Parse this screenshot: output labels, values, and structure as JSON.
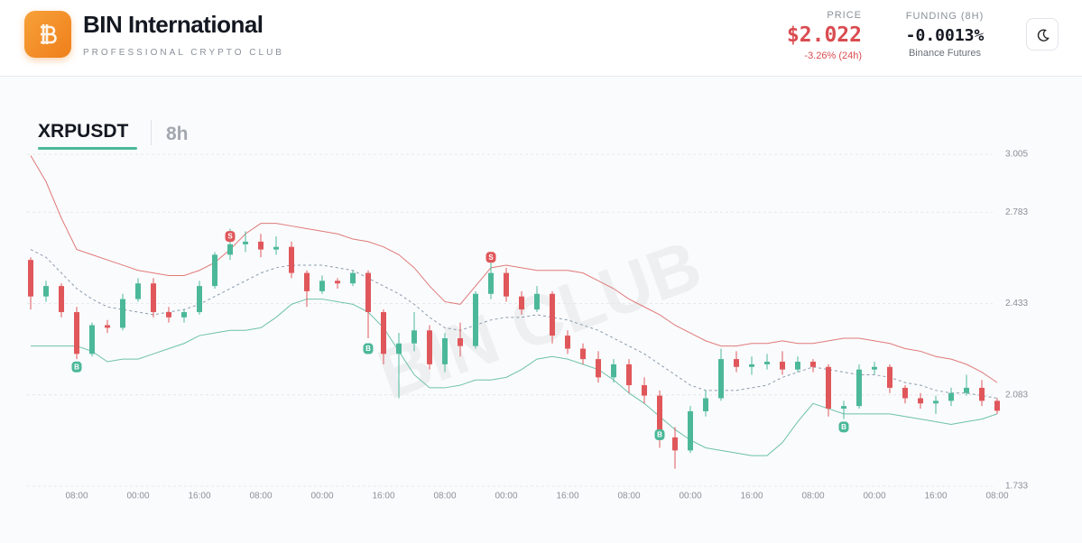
{
  "header": {
    "brand": "BIN International",
    "tagline": "PROFESSIONAL CRYPTO CLUB",
    "price": {
      "label": "PRICE",
      "value": "$2.022",
      "change": "-3.26% (24h)"
    },
    "funding": {
      "label": "FUNDING (8H)",
      "value": "-0.0013%",
      "source": "Binance Futures"
    }
  },
  "tabs": {
    "symbol": "XRPUSDT",
    "interval": "8h"
  },
  "watermark": "BIN CLUB",
  "chart_data": {
    "type": "candlestick",
    "categories": [
      null,
      null,
      null,
      "08:00",
      null,
      null,
      null,
      "00:00",
      null,
      null,
      null,
      "16:00",
      null,
      null,
      null,
      "08:00",
      null,
      null,
      null,
      "00:00",
      null,
      null,
      null,
      "16:00",
      null,
      null,
      null,
      "08:00",
      null,
      null,
      null,
      "00:00",
      null,
      null,
      null,
      "16:00",
      null,
      null,
      null,
      "08:00",
      null,
      null,
      null,
      "00:00",
      null,
      null,
      null,
      "16:00",
      null,
      null,
      null,
      "08:00",
      null,
      null,
      null,
      "00:00",
      null,
      null,
      null,
      "16:00",
      null,
      null,
      null,
      "08:00"
    ],
    "open": [
      2.6,
      2.46,
      2.5,
      2.4,
      2.24,
      2.35,
      2.34,
      2.45,
      2.51,
      2.4,
      2.38,
      2.4,
      2.5,
      2.62,
      2.66,
      2.67,
      2.64,
      2.65,
      2.55,
      2.48,
      2.52,
      2.51,
      2.55,
      2.4,
      2.24,
      2.28,
      2.33,
      2.2,
      2.3,
      2.27,
      2.47,
      2.55,
      2.46,
      2.41,
      2.47,
      2.31,
      2.26,
      2.22,
      2.15,
      2.2,
      2.12,
      2.08,
      1.92,
      1.87,
      2.02,
      2.07,
      2.22,
      2.19,
      2.2,
      2.21,
      2.18,
      2.21,
      2.19,
      2.03,
      2.04,
      2.18,
      2.19,
      2.11,
      2.07,
      2.05,
      2.06,
      2.09,
      2.11,
      2.06
    ],
    "high": [
      2.61,
      2.52,
      2.51,
      2.42,
      2.36,
      2.37,
      2.47,
      2.53,
      2.53,
      2.42,
      2.41,
      2.52,
      2.63,
      2.72,
      2.71,
      2.7,
      2.69,
      2.67,
      2.56,
      2.54,
      2.53,
      2.56,
      2.56,
      2.41,
      2.32,
      2.4,
      2.35,
      2.32,
      2.36,
      2.48,
      2.6,
      2.57,
      2.48,
      2.5,
      2.48,
      2.33,
      2.28,
      2.25,
      2.22,
      2.22,
      2.15,
      2.1,
      1.96,
      2.04,
      2.1,
      2.26,
      2.25,
      2.23,
      2.24,
      2.25,
      2.23,
      2.22,
      2.2,
      2.06,
      2.2,
      2.21,
      2.2,
      2.12,
      2.09,
      2.08,
      2.11,
      2.16,
      2.14,
      2.07
    ],
    "low": [
      2.41,
      2.44,
      2.38,
      2.22,
      2.23,
      2.32,
      2.33,
      2.44,
      2.38,
      2.36,
      2.36,
      2.39,
      2.49,
      2.6,
      2.63,
      2.61,
      2.62,
      2.53,
      2.42,
      2.47,
      2.49,
      2.5,
      2.3,
      2.2,
      2.07,
      2.25,
      2.18,
      2.17,
      2.23,
      2.26,
      2.45,
      2.44,
      2.39,
      2.4,
      2.28,
      2.24,
      2.2,
      2.13,
      2.13,
      2.09,
      2.05,
      1.88,
      1.8,
      1.86,
      2.0,
      2.06,
      2.17,
      2.16,
      2.18,
      2.16,
      2.17,
      2.17,
      2.0,
      1.99,
      2.03,
      2.16,
      2.09,
      2.05,
      2.03,
      2.01,
      2.04,
      2.08,
      2.04,
      2.01
    ],
    "close": [
      2.46,
      2.5,
      2.4,
      2.24,
      2.35,
      2.34,
      2.45,
      2.51,
      2.4,
      2.38,
      2.4,
      2.5,
      2.62,
      2.66,
      2.67,
      2.64,
      2.65,
      2.55,
      2.48,
      2.52,
      2.51,
      2.55,
      2.4,
      2.24,
      2.28,
      2.33,
      2.2,
      2.3,
      2.27,
      2.47,
      2.55,
      2.46,
      2.41,
      2.47,
      2.31,
      2.26,
      2.22,
      2.15,
      2.2,
      2.12,
      2.08,
      1.92,
      1.87,
      2.02,
      2.07,
      2.22,
      2.19,
      2.2,
      2.21,
      2.18,
      2.21,
      2.19,
      2.03,
      2.04,
      2.18,
      2.19,
      2.11,
      2.07,
      2.05,
      2.06,
      2.09,
      2.11,
      2.06,
      2.022
    ],
    "up_color": "#4cb89a",
    "down_color": "#e0575b",
    "upper_band": {
      "color": "#e07a7a",
      "values": [
        3.0,
        2.9,
        2.76,
        2.64,
        2.62,
        2.6,
        2.58,
        2.56,
        2.55,
        2.54,
        2.54,
        2.56,
        2.59,
        2.64,
        2.7,
        2.74,
        2.74,
        2.73,
        2.72,
        2.71,
        2.7,
        2.68,
        2.67,
        2.65,
        2.62,
        2.57,
        2.5,
        2.44,
        2.43,
        2.5,
        2.57,
        2.58,
        2.57,
        2.56,
        2.56,
        2.56,
        2.55,
        2.52,
        2.49,
        2.45,
        2.42,
        2.39,
        2.35,
        2.32,
        2.29,
        2.27,
        2.27,
        2.28,
        2.28,
        2.29,
        2.28,
        2.28,
        2.29,
        2.3,
        2.3,
        2.29,
        2.28,
        2.26,
        2.25,
        2.23,
        2.22,
        2.2,
        2.17,
        2.13
      ]
    },
    "middle_band": {
      "color": "#8a9bb0",
      "values": [
        2.64,
        2.61,
        2.55,
        2.49,
        2.45,
        2.42,
        2.41,
        2.4,
        2.39,
        2.4,
        2.41,
        2.43,
        2.46,
        2.49,
        2.52,
        2.55,
        2.57,
        2.58,
        2.58,
        2.58,
        2.57,
        2.56,
        2.53,
        2.5,
        2.47,
        2.43,
        2.38,
        2.34,
        2.33,
        2.35,
        2.37,
        2.38,
        2.38,
        2.39,
        2.38,
        2.37,
        2.35,
        2.33,
        2.3,
        2.27,
        2.24,
        2.2,
        2.16,
        2.12,
        2.1,
        2.1,
        2.1,
        2.11,
        2.12,
        2.15,
        2.17,
        2.19,
        2.18,
        2.17,
        2.16,
        2.16,
        2.15,
        2.13,
        2.12,
        2.1,
        2.09,
        2.09,
        2.08,
        2.07
      ]
    },
    "lower_band": {
      "color": "#6cc2a8",
      "values": [
        2.27,
        2.27,
        2.27,
        2.27,
        2.25,
        2.21,
        2.22,
        2.22,
        2.24,
        2.26,
        2.28,
        2.31,
        2.32,
        2.33,
        2.33,
        2.34,
        2.38,
        2.43,
        2.45,
        2.45,
        2.44,
        2.43,
        2.4,
        2.34,
        2.25,
        2.16,
        2.11,
        2.11,
        2.12,
        2.14,
        2.14,
        2.15,
        2.18,
        2.22,
        2.23,
        2.22,
        2.2,
        2.18,
        2.14,
        2.09,
        2.05,
        2.0,
        1.95,
        1.91,
        1.88,
        1.87,
        1.86,
        1.85,
        1.85,
        1.9,
        1.98,
        2.05,
        2.03,
        2.01,
        2.01,
        2.01,
        2.01,
        2.0,
        1.99,
        1.98,
        1.97,
        1.98,
        1.99,
        2.01
      ]
    },
    "buy_signals": {
      "label": "B",
      "color": "#4cb89a",
      "values": [
        null,
        null,
        null,
        2.19,
        null,
        null,
        null,
        null,
        null,
        null,
        null,
        null,
        null,
        null,
        null,
        null,
        null,
        null,
        null,
        null,
        null,
        null,
        2.26,
        null,
        null,
        null,
        null,
        null,
        null,
        null,
        null,
        null,
        null,
        null,
        null,
        null,
        null,
        null,
        null,
        null,
        null,
        1.93,
        null,
        null,
        null,
        null,
        null,
        null,
        null,
        null,
        null,
        null,
        null,
        1.96,
        null,
        null,
        null,
        null,
        null,
        null,
        null,
        null,
        null,
        null
      ]
    },
    "sell_signals": {
      "label": "S",
      "color": "#e0575b",
      "values": [
        null,
        null,
        null,
        null,
        null,
        null,
        null,
        null,
        null,
        null,
        null,
        null,
        null,
        2.69,
        null,
        null,
        null,
        null,
        null,
        null,
        null,
        null,
        null,
        null,
        null,
        null,
        null,
        null,
        null,
        null,
        2.61,
        null,
        null,
        null,
        null,
        null,
        null,
        null,
        null,
        null,
        null,
        null,
        null,
        null,
        null,
        null,
        null,
        null,
        null,
        null,
        null,
        null,
        null,
        null,
        null,
        null,
        null,
        null,
        null,
        null,
        null,
        null,
        null,
        null
      ]
    },
    "ylim": [
      1.733,
      3.005
    ],
    "yticks": [
      1.733,
      2.083,
      2.433,
      2.783,
      3.005
    ],
    "grid": true
  }
}
